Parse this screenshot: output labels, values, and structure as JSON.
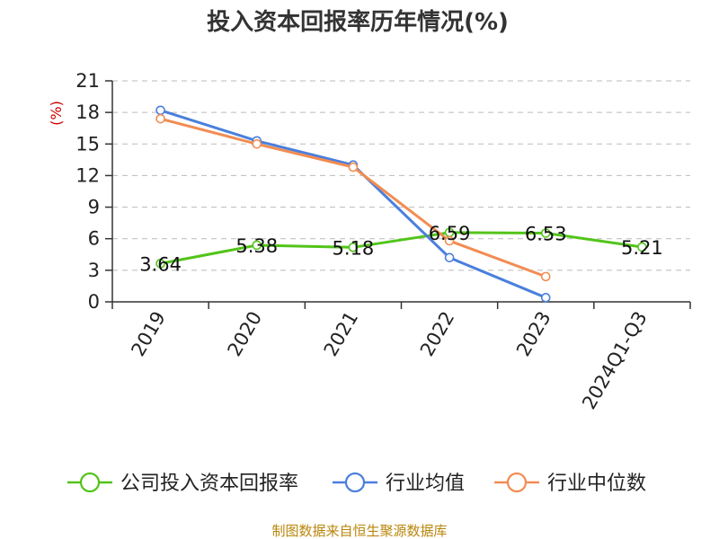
{
  "chart_data": {
    "type": "line",
    "title": "投入资本回报率历年情况(%)",
    "ylabel": "(%)",
    "xlabel": "",
    "categories": [
      "2019",
      "2020",
      "2021",
      "2022",
      "2023",
      "2024Q1-Q3"
    ],
    "ylim": [
      0,
      21
    ],
    "yticks": [
      0,
      3,
      6,
      9,
      12,
      15,
      18,
      21
    ],
    "grid": true,
    "legend_position": "bottom",
    "series": [
      {
        "name": "公司投入资本回报率",
        "color": "#52c41a",
        "show_labels": true,
        "values": [
          3.64,
          5.38,
          5.18,
          6.59,
          6.53,
          5.21
        ]
      },
      {
        "name": "行业均值",
        "color": "#4a7fdc",
        "show_labels": false,
        "values": [
          18.2,
          15.3,
          13.0,
          4.2,
          0.4,
          null
        ]
      },
      {
        "name": "行业中位数",
        "color": "#f28c52",
        "show_labels": false,
        "values": [
          17.4,
          15.0,
          12.8,
          5.8,
          2.4,
          null
        ]
      }
    ],
    "source": "制图数据来自恒生聚源数据库"
  }
}
